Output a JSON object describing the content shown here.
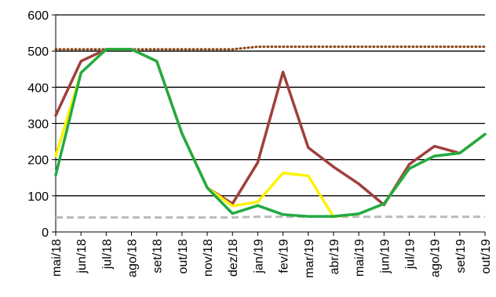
{
  "chart_data": {
    "type": "line",
    "title": "",
    "xlabel": "",
    "ylabel": "",
    "categories": [
      "mai/18",
      "jun/18",
      "jul/18",
      "ago/18",
      "set/18",
      "out/18",
      "nov/18",
      "dez/18",
      "jan/19",
      "fev/19",
      "mar/19",
      "abr/19",
      "mai/19",
      "jun/19",
      "jul/19",
      "ago/19",
      "set/19",
      "out/19"
    ],
    "ylim": [
      0,
      600
    ],
    "yticks": [
      "0",
      "100",
      "200",
      "300",
      "400",
      "500",
      "600"
    ],
    "grid": true,
    "legend": "none",
    "series": [
      {
        "color": "#8B4513",
        "style": "dotted",
        "values": [
          505,
          505,
          505,
          505,
          505,
          505,
          505,
          505,
          512,
          512,
          512,
          512,
          512,
          512,
          512,
          512,
          512,
          512
        ]
      },
      {
        "color": "#BBBBBB",
        "style": "dashed",
        "values": [
          40,
          40,
          40,
          40,
          40,
          40,
          40,
          40,
          42,
          42,
          42,
          42,
          42,
          42,
          42,
          42,
          42,
          42
        ]
      },
      {
        "color": "#A0403C",
        "style": "solid",
        "values": [
          322,
          472,
          505,
          505,
          472,
          272,
          122,
          78,
          192,
          442,
          233,
          180,
          133,
          75,
          187,
          237,
          218,
          270
        ]
      },
      {
        "color": "#FFF200",
        "style": "solid",
        "values": [
          210,
          440,
          505,
          505,
          472,
          272,
          122,
          72,
          83,
          163,
          155,
          42,
          50,
          78,
          175,
          210,
          218,
          270
        ]
      },
      {
        "color": "#22AA44",
        "style": "solid",
        "values": [
          157,
          440,
          505,
          505,
          472,
          272,
          122,
          51,
          73,
          48,
          43,
          43,
          50,
          78,
          175,
          210,
          218,
          270
        ]
      }
    ]
  }
}
